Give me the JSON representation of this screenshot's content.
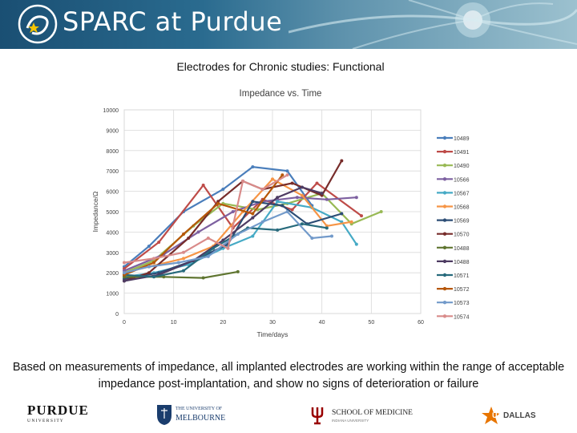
{
  "header": {
    "title": "SPARC at Purdue"
  },
  "slide": {
    "title": "Electrodes for Chronic studies: Functional",
    "caption": "Based on measurements of impedance, all implanted electrodes are working within the range of acceptable impedance post-implantation, and show no signs of deterioration or failure"
  },
  "footer": {
    "purdue_name": "PURDUE",
    "purdue_sub": "U N I V E R S I T Y",
    "melbourne_line1": "THE UNIVERSITY OF",
    "melbourne_line2": "MELBOURNE",
    "iu_line1": "SCHOOL OF MEDICINE",
    "iu_line2": "INDIANA UNIVERSITY",
    "ut_name": "DALLAS",
    "ut_mark": "UT"
  },
  "chart_data": {
    "type": "line",
    "title": "Impedance vs. Time",
    "xlabel": "Time/days",
    "ylabel": "Impedance/Ω",
    "xlim": [
      0,
      60
    ],
    "ylim": [
      0,
      10000
    ],
    "xticks": [
      0,
      10,
      20,
      30,
      40,
      50,
      60
    ],
    "yticks": [
      0,
      1000,
      2000,
      3000,
      4000,
      5000,
      6000,
      7000,
      8000,
      9000,
      10000
    ],
    "grid": true,
    "legend_position": "right",
    "series": [
      {
        "name": "10489",
        "color": "#4a7ebb",
        "x": [
          0,
          5,
          12,
          20,
          26,
          33,
          38
        ],
        "y": [
          2300,
          3300,
          5000,
          6100,
          7200,
          7000,
          5300
        ]
      },
      {
        "name": "10491",
        "color": "#be4b48",
        "x": [
          0,
          7,
          16,
          22,
          28,
          34,
          39,
          48
        ],
        "y": [
          2200,
          3500,
          6300,
          4200,
          5600,
          5100,
          6400,
          4800
        ]
      },
      {
        "name": "10490",
        "color": "#98b954",
        "x": [
          0,
          6,
          14,
          20,
          27,
          33,
          40,
          46,
          52
        ],
        "y": [
          2000,
          2600,
          4300,
          5400,
          5100,
          5400,
          5900,
          4400,
          5000
        ]
      },
      {
        "name": "10566",
        "color": "#7d60a0",
        "x": [
          0,
          8,
          15,
          22,
          28,
          35,
          41,
          47
        ],
        "y": [
          2100,
          2900,
          4000,
          5000,
          5500,
          5700,
          5600,
          5700
        ]
      },
      {
        "name": "10567",
        "color": "#46aac5",
        "x": [
          0,
          6,
          13,
          20,
          26,
          31,
          38,
          44,
          47
        ],
        "y": [
          1800,
          2000,
          2400,
          3200,
          3800,
          5500,
          5200,
          4500,
          3400
        ]
      },
      {
        "name": "10568",
        "color": "#f69546",
        "x": [
          0,
          5,
          12,
          18,
          24,
          30,
          36,
          41,
          46
        ],
        "y": [
          2000,
          2300,
          2700,
          3300,
          5000,
          6600,
          5800,
          4300,
          4500
        ]
      },
      {
        "name": "10569",
        "color": "#2c4d75",
        "x": [
          0,
          7,
          14,
          21,
          26,
          32,
          37,
          44
        ],
        "y": [
          1700,
          2000,
          2600,
          3400,
          5500,
          5300,
          4400,
          4900
        ]
      },
      {
        "name": "10570",
        "color": "#772c2a",
        "x": [
          0,
          5,
          13,
          19,
          24,
          28,
          34,
          40,
          44
        ],
        "y": [
          1600,
          2000,
          3700,
          5500,
          6500,
          6100,
          6400,
          5800,
          7500
        ]
      },
      {
        "name": "10488",
        "color": "#5f7530",
        "x": [
          0,
          8,
          16,
          23
        ],
        "y": [
          1800,
          1800,
          1750,
          2050
        ]
      },
      {
        "name": "10488",
        "color": "#4d3b62",
        "x": [
          0,
          7,
          14,
          20,
          26,
          31,
          36,
          40
        ],
        "y": [
          1600,
          1900,
          2600,
          3600,
          4700,
          5700,
          6200,
          5900
        ]
      },
      {
        "name": "10571",
        "color": "#276a7c",
        "x": [
          0,
          6,
          12,
          18,
          25,
          31,
          36,
          41
        ],
        "y": [
          1900,
          1800,
          2100,
          3200,
          4200,
          4100,
          4400,
          4200
        ]
      },
      {
        "name": "10572",
        "color": "#b65708",
        "x": [
          0,
          6,
          12,
          19,
          26,
          32
        ],
        "y": [
          1900,
          2500,
          3900,
          5400,
          4900,
          6800
        ]
      },
      {
        "name": "10573",
        "color": "#729aca",
        "x": [
          0,
          5,
          11,
          17,
          23,
          28,
          33,
          38,
          42
        ],
        "y": [
          2000,
          2300,
          2500,
          2800,
          3900,
          4500,
          5000,
          3700,
          3800
        ]
      },
      {
        "name": "10574",
        "color": "#d98b8a",
        "x": [
          0,
          6,
          12,
          17,
          21,
          24,
          28,
          33
        ],
        "y": [
          2500,
          2700,
          3000,
          3700,
          3200,
          6500,
          6100,
          6800
        ]
      }
    ]
  }
}
